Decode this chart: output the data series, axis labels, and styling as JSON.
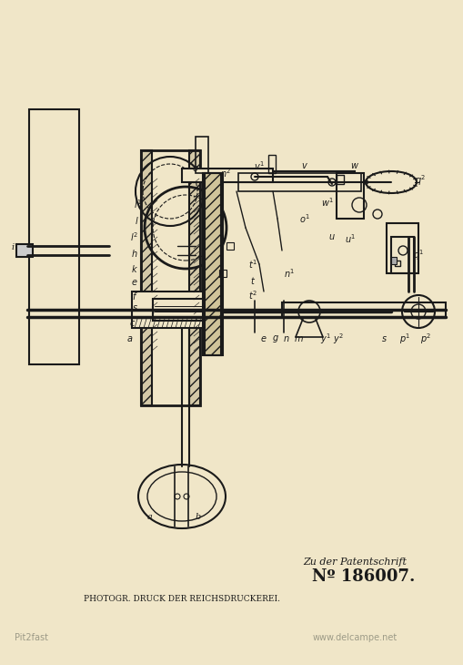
{
  "bg_color": "#f0e6c8",
  "line_color": "#1a1a1a",
  "text_color": "#1a1a1a",
  "patent_number": "Nº 186007.",
  "patent_label": "Zu der Patentschrift",
  "bottom_text": "PHOTOGR. DRUCK DER REICHSDRUCKEREI.",
  "watermark": "www.delcampe.net",
  "source_label": "Pit2fast",
  "fig_width": 5.1,
  "fig_height": 7.3,
  "dpi": 100
}
